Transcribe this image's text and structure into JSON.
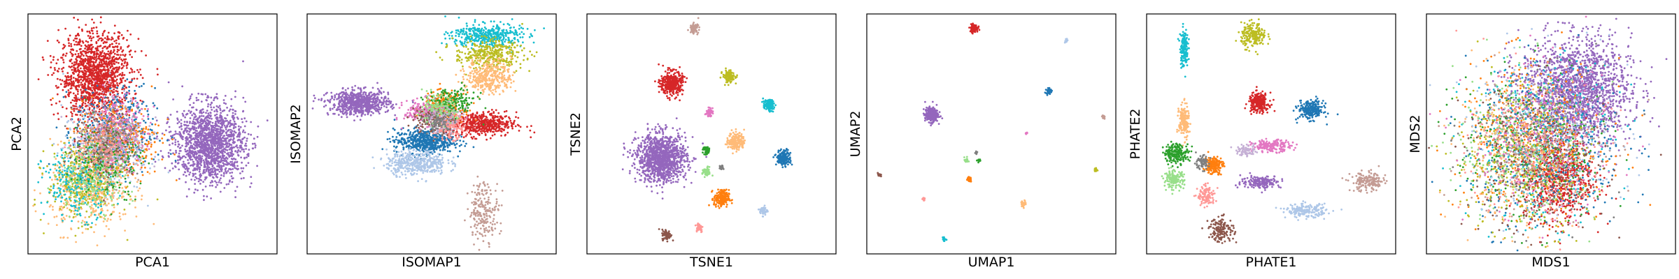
{
  "chart_data": [
    {
      "type": "scatter",
      "xlabel": "PCA1",
      "ylabel": "PCA2",
      "clusters": [
        {
          "color": "#d62728",
          "cx": 0.27,
          "cy": 0.74,
          "sx": 0.07,
          "sy": 0.09,
          "n": 2400
        },
        {
          "color": "#9467bd",
          "cx": 0.73,
          "cy": 0.46,
          "sx": 0.07,
          "sy": 0.08,
          "n": 2600
        },
        {
          "color": "#1f77b4",
          "cx": 0.35,
          "cy": 0.51,
          "sx": 0.08,
          "sy": 0.09,
          "n": 700
        },
        {
          "color": "#ff7f0e",
          "cx": 0.37,
          "cy": 0.48,
          "sx": 0.08,
          "sy": 0.08,
          "n": 600
        },
        {
          "color": "#aec7e8",
          "cx": 0.3,
          "cy": 0.43,
          "sx": 0.08,
          "sy": 0.09,
          "n": 500
        },
        {
          "color": "#c5b0d5",
          "cx": 0.34,
          "cy": 0.5,
          "sx": 0.07,
          "sy": 0.08,
          "n": 400
        },
        {
          "color": "#ffbb78",
          "cx": 0.25,
          "cy": 0.28,
          "sx": 0.08,
          "sy": 0.09,
          "n": 900
        },
        {
          "color": "#bcbd22",
          "cx": 0.22,
          "cy": 0.3,
          "sx": 0.07,
          "sy": 0.08,
          "n": 500
        },
        {
          "color": "#17becf",
          "cx": 0.2,
          "cy": 0.29,
          "sx": 0.07,
          "sy": 0.07,
          "n": 400
        },
        {
          "color": "#98df8a",
          "cx": 0.26,
          "cy": 0.32,
          "sx": 0.07,
          "sy": 0.07,
          "n": 300
        },
        {
          "color": "#2ca02c",
          "cx": 0.32,
          "cy": 0.4,
          "sx": 0.07,
          "sy": 0.08,
          "n": 300
        },
        {
          "color": "#e377c2",
          "cx": 0.36,
          "cy": 0.52,
          "sx": 0.06,
          "sy": 0.07,
          "n": 300
        },
        {
          "color": "#c49c94",
          "cx": 0.33,
          "cy": 0.45,
          "sx": 0.06,
          "sy": 0.07,
          "n": 250
        },
        {
          "color": "#8c564b",
          "cx": 0.3,
          "cy": 0.46,
          "sx": 0.06,
          "sy": 0.07,
          "n": 200
        },
        {
          "color": "#ff9896",
          "cx": 0.31,
          "cy": 0.44,
          "sx": 0.06,
          "sy": 0.07,
          "n": 200
        },
        {
          "color": "#7f7f7f",
          "cx": 0.33,
          "cy": 0.48,
          "sx": 0.06,
          "sy": 0.06,
          "n": 150
        }
      ]
    },
    {
      "type": "scatter",
      "xlabel": "ISOMAP1",
      "ylabel": "ISOMAP2",
      "clusters": [
        {
          "color": "#9467bd",
          "cx": 0.21,
          "cy": 0.63,
          "sx": 0.06,
          "sy": 0.025,
          "n": 1200
        },
        {
          "color": "#17becf",
          "cx": 0.72,
          "cy": 0.91,
          "sx": 0.07,
          "sy": 0.025,
          "n": 700
        },
        {
          "color": "#bcbd22",
          "cx": 0.73,
          "cy": 0.83,
          "sx": 0.07,
          "sy": 0.03,
          "n": 600
        },
        {
          "color": "#ffbb78",
          "cx": 0.73,
          "cy": 0.74,
          "sx": 0.045,
          "sy": 0.035,
          "n": 600
        },
        {
          "color": "#d62728",
          "cx": 0.7,
          "cy": 0.54,
          "sx": 0.07,
          "sy": 0.025,
          "n": 900
        },
        {
          "color": "#1f77b4",
          "cx": 0.47,
          "cy": 0.47,
          "sx": 0.06,
          "sy": 0.025,
          "n": 900
        },
        {
          "color": "#aec7e8",
          "cx": 0.44,
          "cy": 0.38,
          "sx": 0.06,
          "sy": 0.025,
          "n": 700
        },
        {
          "color": "#ff7f0e",
          "cx": 0.55,
          "cy": 0.61,
          "sx": 0.04,
          "sy": 0.03,
          "n": 500
        },
        {
          "color": "#2ca02c",
          "cx": 0.58,
          "cy": 0.63,
          "sx": 0.05,
          "sy": 0.03,
          "n": 300
        },
        {
          "color": "#e377c2",
          "cx": 0.47,
          "cy": 0.59,
          "sx": 0.04,
          "sy": 0.025,
          "n": 300
        },
        {
          "color": "#ff9896",
          "cx": 0.57,
          "cy": 0.53,
          "sx": 0.03,
          "sy": 0.025,
          "n": 300
        },
        {
          "color": "#c49c94",
          "cx": 0.71,
          "cy": 0.18,
          "sx": 0.03,
          "sy": 0.06,
          "n": 350
        },
        {
          "color": "#8c564b",
          "cx": 0.5,
          "cy": 0.56,
          "sx": 0.04,
          "sy": 0.03,
          "n": 200
        },
        {
          "color": "#c5b0d5",
          "cx": 0.54,
          "cy": 0.57,
          "sx": 0.04,
          "sy": 0.03,
          "n": 200
        },
        {
          "color": "#98df8a",
          "cx": 0.52,
          "cy": 0.6,
          "sx": 0.04,
          "sy": 0.03,
          "n": 200
        },
        {
          "color": "#7f7f7f",
          "cx": 0.53,
          "cy": 0.55,
          "sx": 0.03,
          "sy": 0.02,
          "n": 150
        }
      ]
    },
    {
      "type": "scatter",
      "xlabel": "TSNE1",
      "ylabel": "TSNE2",
      "clusters": [
        {
          "color": "#9467bd",
          "cx": 0.3,
          "cy": 0.4,
          "sx": 0.05,
          "sy": 0.05,
          "n": 2000
        },
        {
          "color": "#d62728",
          "cx": 0.34,
          "cy": 0.71,
          "sx": 0.022,
          "sy": 0.025,
          "n": 600
        },
        {
          "color": "#c49c94",
          "cx": 0.43,
          "cy": 0.94,
          "sx": 0.009,
          "sy": 0.01,
          "n": 120
        },
        {
          "color": "#bcbd22",
          "cx": 0.57,
          "cy": 0.74,
          "sx": 0.012,
          "sy": 0.013,
          "n": 200
        },
        {
          "color": "#17becf",
          "cx": 0.73,
          "cy": 0.62,
          "sx": 0.011,
          "sy": 0.012,
          "n": 180
        },
        {
          "color": "#e377c2",
          "cx": 0.49,
          "cy": 0.59,
          "sx": 0.007,
          "sy": 0.008,
          "n": 80
        },
        {
          "color": "#ffbb78",
          "cx": 0.6,
          "cy": 0.47,
          "sx": 0.016,
          "sy": 0.02,
          "n": 300
        },
        {
          "color": "#1f77b4",
          "cx": 0.79,
          "cy": 0.4,
          "sx": 0.014,
          "sy": 0.016,
          "n": 300
        },
        {
          "color": "#2ca02c",
          "cx": 0.48,
          "cy": 0.43,
          "sx": 0.007,
          "sy": 0.008,
          "n": 80
        },
        {
          "color": "#98df8a",
          "cx": 0.48,
          "cy": 0.34,
          "sx": 0.008,
          "sy": 0.01,
          "n": 100
        },
        {
          "color": "#7f7f7f",
          "cx": 0.54,
          "cy": 0.36,
          "sx": 0.004,
          "sy": 0.006,
          "n": 30
        },
        {
          "color": "#ff7f0e",
          "cx": 0.54,
          "cy": 0.23,
          "sx": 0.015,
          "sy": 0.018,
          "n": 300
        },
        {
          "color": "#aec7e8",
          "cx": 0.71,
          "cy": 0.18,
          "sx": 0.008,
          "sy": 0.01,
          "n": 80
        },
        {
          "color": "#ff9896",
          "cx": 0.45,
          "cy": 0.11,
          "sx": 0.008,
          "sy": 0.01,
          "n": 80
        },
        {
          "color": "#8c564b",
          "cx": 0.32,
          "cy": 0.08,
          "sx": 0.009,
          "sy": 0.011,
          "n": 120
        }
      ]
    },
    {
      "type": "scatter",
      "xlabel": "UMAP1",
      "ylabel": "UMAP2",
      "clusters": [
        {
          "color": "#d62728",
          "cx": 0.43,
          "cy": 0.94,
          "sx": 0.008,
          "sy": 0.008,
          "n": 200
        },
        {
          "color": "#aec7e8",
          "cx": 0.8,
          "cy": 0.89,
          "sx": 0.003,
          "sy": 0.004,
          "n": 25
        },
        {
          "color": "#1f77b4",
          "cx": 0.73,
          "cy": 0.68,
          "sx": 0.005,
          "sy": 0.006,
          "n": 60
        },
        {
          "color": "#9467bd",
          "cx": 0.26,
          "cy": 0.58,
          "sx": 0.013,
          "sy": 0.015,
          "n": 500
        },
        {
          "color": "#c49c94",
          "cx": 0.95,
          "cy": 0.57,
          "sx": 0.003,
          "sy": 0.004,
          "n": 25
        },
        {
          "color": "#e377c2",
          "cx": 0.64,
          "cy": 0.5,
          "sx": 0.003,
          "sy": 0.003,
          "n": 12
        },
        {
          "color": "#7f7f7f",
          "cx": 0.44,
          "cy": 0.42,
          "sx": 0.003,
          "sy": 0.004,
          "n": 15
        },
        {
          "color": "#98df8a",
          "cx": 0.4,
          "cy": 0.39,
          "sx": 0.004,
          "sy": 0.006,
          "n": 30
        },
        {
          "color": "#2ca02c",
          "cx": 0.45,
          "cy": 0.39,
          "sx": 0.004,
          "sy": 0.004,
          "n": 20
        },
        {
          "color": "#8c564b",
          "cx": 0.05,
          "cy": 0.33,
          "sx": 0.003,
          "sy": 0.004,
          "n": 20
        },
        {
          "color": "#bcbd22",
          "cx": 0.92,
          "cy": 0.35,
          "sx": 0.003,
          "sy": 0.005,
          "n": 25
        },
        {
          "color": "#ff7f0e",
          "cx": 0.41,
          "cy": 0.31,
          "sx": 0.005,
          "sy": 0.005,
          "n": 50
        },
        {
          "color": "#ff9896",
          "cx": 0.23,
          "cy": 0.23,
          "sx": 0.003,
          "sy": 0.004,
          "n": 20
        },
        {
          "color": "#ffbb78",
          "cx": 0.63,
          "cy": 0.21,
          "sx": 0.005,
          "sy": 0.006,
          "n": 60
        },
        {
          "color": "#17becf",
          "cx": 0.31,
          "cy": 0.06,
          "sx": 0.004,
          "sy": 0.005,
          "n": 30
        }
      ]
    },
    {
      "type": "scatter",
      "xlabel": "PHATE1",
      "ylabel": "PHATE2",
      "clusters": [
        {
          "color": "#17becf",
          "cx": 0.15,
          "cy": 0.86,
          "sx": 0.008,
          "sy": 0.04,
          "n": 250
        },
        {
          "color": "#bcbd22",
          "cx": 0.43,
          "cy": 0.91,
          "sx": 0.025,
          "sy": 0.025,
          "n": 350
        },
        {
          "color": "#d62728",
          "cx": 0.45,
          "cy": 0.63,
          "sx": 0.02,
          "sy": 0.02,
          "n": 400
        },
        {
          "color": "#1f77b4",
          "cx": 0.66,
          "cy": 0.6,
          "sx": 0.025,
          "sy": 0.02,
          "n": 400
        },
        {
          "color": "#ffbb78",
          "cx": 0.15,
          "cy": 0.55,
          "sx": 0.01,
          "sy": 0.035,
          "n": 300
        },
        {
          "color": "#e377c2",
          "cx": 0.5,
          "cy": 0.45,
          "sx": 0.04,
          "sy": 0.012,
          "n": 300
        },
        {
          "color": "#2ca02c",
          "cx": 0.12,
          "cy": 0.42,
          "sx": 0.025,
          "sy": 0.02,
          "n": 350
        },
        {
          "color": "#ff7f0e",
          "cx": 0.27,
          "cy": 0.37,
          "sx": 0.018,
          "sy": 0.018,
          "n": 300
        },
        {
          "color": "#7f7f7f",
          "cx": 0.22,
          "cy": 0.38,
          "sx": 0.015,
          "sy": 0.015,
          "n": 120
        },
        {
          "color": "#98df8a",
          "cx": 0.11,
          "cy": 0.31,
          "sx": 0.02,
          "sy": 0.018,
          "n": 250
        },
        {
          "color": "#9467bd",
          "cx": 0.46,
          "cy": 0.3,
          "sx": 0.04,
          "sy": 0.013,
          "n": 300
        },
        {
          "color": "#ff9896",
          "cx": 0.24,
          "cy": 0.24,
          "sx": 0.018,
          "sy": 0.02,
          "n": 200
        },
        {
          "color": "#aec7e8",
          "cx": 0.64,
          "cy": 0.18,
          "sx": 0.04,
          "sy": 0.014,
          "n": 300
        },
        {
          "color": "#c49c94",
          "cx": 0.89,
          "cy": 0.3,
          "sx": 0.035,
          "sy": 0.02,
          "n": 300
        },
        {
          "color": "#8c564b",
          "cx": 0.3,
          "cy": 0.1,
          "sx": 0.025,
          "sy": 0.025,
          "n": 250
        },
        {
          "color": "#c5b0d5",
          "cx": 0.4,
          "cy": 0.43,
          "sx": 0.02,
          "sy": 0.012,
          "n": 120
        }
      ]
    },
    {
      "type": "scatter",
      "xlabel": "MDS1",
      "ylabel": "MDS2",
      "clusters": [
        {
          "color": "#9467bd",
          "cx": 0.6,
          "cy": 0.68,
          "sx": 0.11,
          "sy": 0.11,
          "n": 3000
        },
        {
          "color": "#d62728",
          "cx": 0.53,
          "cy": 0.32,
          "sx": 0.07,
          "sy": 0.09,
          "n": 1200
        },
        {
          "color": "#1f77b4",
          "cx": 0.48,
          "cy": 0.45,
          "sx": 0.16,
          "sy": 0.17,
          "n": 600
        },
        {
          "color": "#ff7f0e",
          "cx": 0.42,
          "cy": 0.48,
          "sx": 0.15,
          "sy": 0.16,
          "n": 600
        },
        {
          "color": "#2ca02c",
          "cx": 0.42,
          "cy": 0.43,
          "sx": 0.15,
          "sy": 0.16,
          "n": 500
        },
        {
          "color": "#17becf",
          "cx": 0.45,
          "cy": 0.47,
          "sx": 0.15,
          "sy": 0.17,
          "n": 500
        },
        {
          "color": "#bcbd22",
          "cx": 0.38,
          "cy": 0.4,
          "sx": 0.14,
          "sy": 0.16,
          "n": 500
        },
        {
          "color": "#ffbb78",
          "cx": 0.36,
          "cy": 0.42,
          "sx": 0.12,
          "sy": 0.15,
          "n": 500
        },
        {
          "color": "#98df8a",
          "cx": 0.4,
          "cy": 0.44,
          "sx": 0.14,
          "sy": 0.16,
          "n": 400
        },
        {
          "color": "#e377c2",
          "cx": 0.46,
          "cy": 0.46,
          "sx": 0.15,
          "sy": 0.16,
          "n": 400
        },
        {
          "color": "#8c564b",
          "cx": 0.44,
          "cy": 0.4,
          "sx": 0.14,
          "sy": 0.16,
          "n": 400
        },
        {
          "color": "#aec7e8",
          "cx": 0.5,
          "cy": 0.5,
          "sx": 0.16,
          "sy": 0.17,
          "n": 400
        },
        {
          "color": "#c49c94",
          "cx": 0.43,
          "cy": 0.45,
          "sx": 0.14,
          "sy": 0.16,
          "n": 300
        },
        {
          "color": "#ff9896",
          "cx": 0.45,
          "cy": 0.42,
          "sx": 0.14,
          "sy": 0.16,
          "n": 300
        },
        {
          "color": "#7f7f7f",
          "cx": 0.46,
          "cy": 0.44,
          "sx": 0.15,
          "sy": 0.16,
          "n": 250
        }
      ]
    }
  ]
}
